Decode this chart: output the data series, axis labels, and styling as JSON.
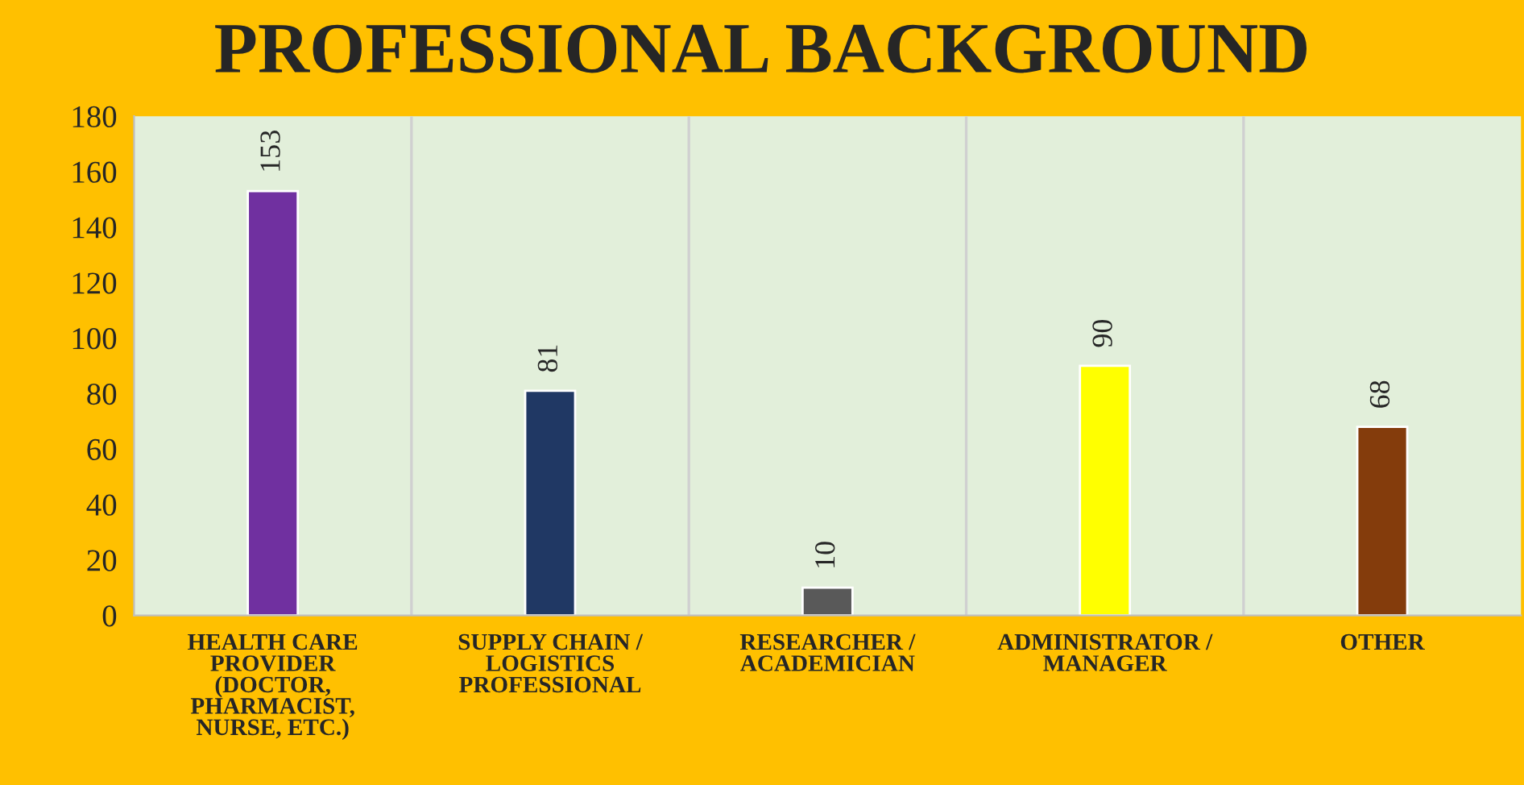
{
  "chart_data": {
    "type": "bar",
    "title": "PROFESSIONAL BACKGROUND",
    "categories": [
      "HEALTH CARE PROVIDER (DOCTOR, PHARMACIST, NURSE, ETC.)",
      "SUPPLY CHAIN / LOGISTICS PROFESSIONAL",
      "RESEARCHER / ACADEMICIAN",
      "ADMINISTRATOR / MANAGER",
      "OTHER"
    ],
    "values": [
      153,
      81,
      10,
      90,
      68
    ],
    "colors": [
      "#7030a0",
      "#203864",
      "#595959",
      "#ffff00",
      "#843c0c"
    ],
    "ylim": [
      0,
      180
    ],
    "yticks": [
      0,
      20,
      40,
      60,
      80,
      100,
      120,
      140,
      160,
      180
    ],
    "grid": "x",
    "data_labels": true
  }
}
